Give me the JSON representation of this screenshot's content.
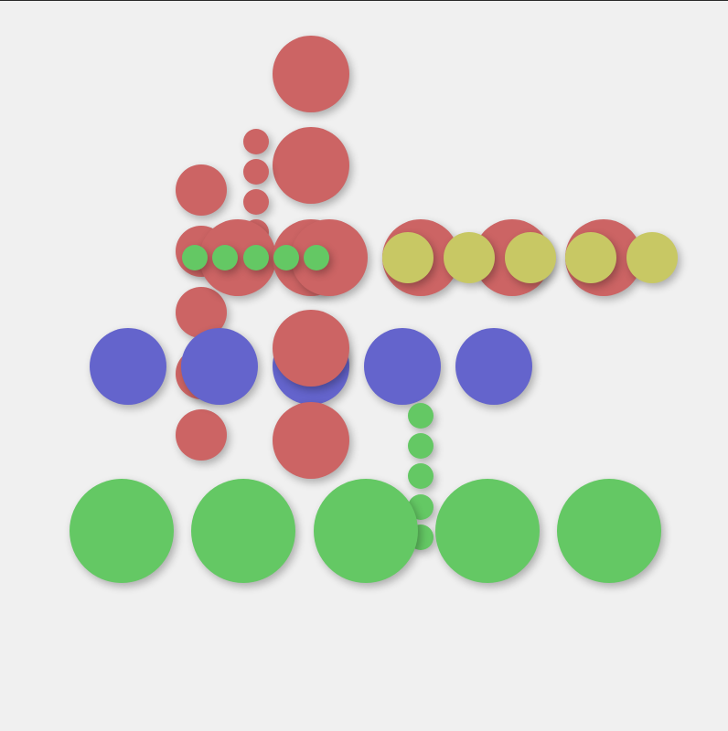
{
  "palette": {
    "red": "#cc6464",
    "blue": "#6464cc",
    "green": "#64c864",
    "yellow": "#c8c864",
    "background": "#f0f0f0"
  },
  "balls": [
    {
      "color": "red",
      "size": "large"
    },
    {
      "color": "red",
      "size": "large"
    },
    {
      "color": "red",
      "size": "small"
    },
    {
      "color": "red",
      "size": "small"
    },
    {
      "color": "red",
      "size": "small"
    },
    {
      "color": "red",
      "size": "small"
    },
    {
      "color": "red",
      "size": "medium"
    },
    {
      "color": "red",
      "size": "medium"
    },
    {
      "color": "red",
      "size": "medium"
    },
    {
      "color": "red",
      "size": "medium"
    },
    {
      "color": "red",
      "size": "medium"
    },
    {
      "color": "red",
      "size": "large"
    },
    {
      "color": "red",
      "size": "large"
    },
    {
      "color": "red",
      "size": "large"
    },
    {
      "color": "red",
      "size": "large"
    },
    {
      "color": "red",
      "size": "large"
    },
    {
      "color": "red",
      "size": "large"
    },
    {
      "color": "yellow",
      "size": "medium"
    },
    {
      "color": "yellow",
      "size": "medium"
    },
    {
      "color": "yellow",
      "size": "medium"
    },
    {
      "color": "yellow",
      "size": "medium"
    },
    {
      "color": "yellow",
      "size": "medium"
    },
    {
      "color": "green",
      "size": "small"
    },
    {
      "color": "green",
      "size": "small"
    },
    {
      "color": "green",
      "size": "small"
    },
    {
      "color": "green",
      "size": "small"
    },
    {
      "color": "green",
      "size": "small"
    },
    {
      "color": "blue",
      "size": "large"
    },
    {
      "color": "blue",
      "size": "large"
    },
    {
      "color": "blue",
      "size": "large"
    },
    {
      "color": "blue",
      "size": "large"
    },
    {
      "color": "blue",
      "size": "large"
    },
    {
      "color": "red",
      "size": "large"
    },
    {
      "color": "red",
      "size": "large"
    },
    {
      "color": "green",
      "size": "small"
    },
    {
      "color": "green",
      "size": "small"
    },
    {
      "color": "green",
      "size": "small"
    },
    {
      "color": "green",
      "size": "small"
    },
    {
      "color": "green",
      "size": "small"
    },
    {
      "color": "green",
      "size": "xlarge"
    },
    {
      "color": "green",
      "size": "xlarge"
    },
    {
      "color": "green",
      "size": "xlarge"
    },
    {
      "color": "green",
      "size": "xlarge"
    },
    {
      "color": "green",
      "size": "xlarge"
    }
  ]
}
